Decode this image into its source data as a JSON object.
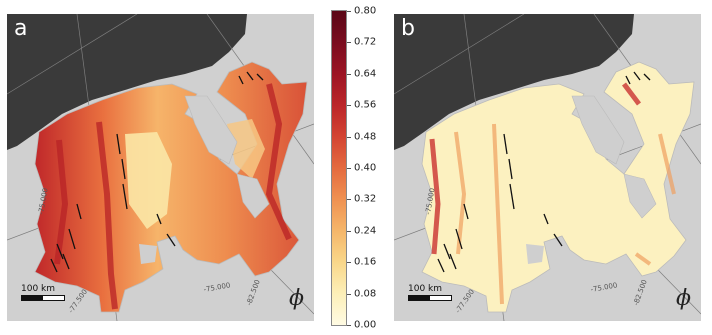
{
  "panels": [
    {
      "label": "a",
      "scale_text": "100 km",
      "variable_symbol": "ϕ",
      "grid_labels": [
        "-75.000",
        "-77.500",
        "-75.000",
        "-82.500"
      ]
    },
    {
      "label": "b",
      "scale_text": "100 km",
      "variable_symbol": "ϕ",
      "grid_labels": [
        "-75.000",
        "-77.500",
        "-75.000",
        "-82.500"
      ]
    }
  ],
  "colorbar": {
    "ticks": [
      "0.80",
      "0.72",
      "0.64",
      "0.56",
      "0.48",
      "0.40",
      "0.32",
      "0.24",
      "0.16",
      "0.08",
      "0.00"
    ],
    "min": 0.0,
    "max": 0.8,
    "colormap": "YlOrRd"
  },
  "colors": {
    "ocean_background": "#cfcfcf",
    "continent_mask": "#3a3a3a",
    "ice_low": "#fdf6c8",
    "ice_mid": "#f0a060",
    "ice_high": "#c0282a"
  }
}
